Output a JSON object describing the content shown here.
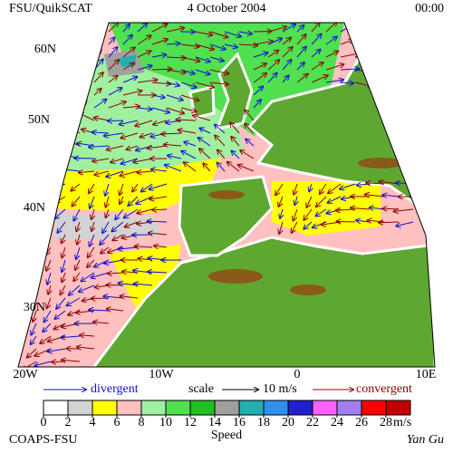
{
  "header": {
    "title": "FSU/QuikSCAT",
    "date": "4 October 2004",
    "time": "00:00"
  },
  "map": {
    "lat_labels": [
      "60N",
      "50N",
      "40N",
      "30N"
    ],
    "lon_labels": [
      "20W",
      "10W",
      "0",
      "10E"
    ]
  },
  "legend": {
    "divergent": "divergent",
    "scale": "scale",
    "scale_value": "10 m/s",
    "convergent": "convergent"
  },
  "colorbar": {
    "ticks": [
      0,
      2,
      4,
      6,
      8,
      10,
      12,
      14,
      16,
      18,
      20,
      22,
      24,
      26,
      28
    ],
    "unit": "m/s",
    "label": "Speed",
    "colors": [
      "#ffffff",
      "#d3d3d3",
      "#ffff00",
      "#ffc0c0",
      "#a0f0a0",
      "#50e050",
      "#20c020",
      "#a0a0a0",
      "#20b0b0",
      "#3090f0",
      "#2020d0",
      "#ff60ff",
      "#a080f0",
      "#ff0000",
      "#c00000"
    ]
  },
  "footer": {
    "left": "COAPS-FSU",
    "right": "Yan Gu"
  }
}
